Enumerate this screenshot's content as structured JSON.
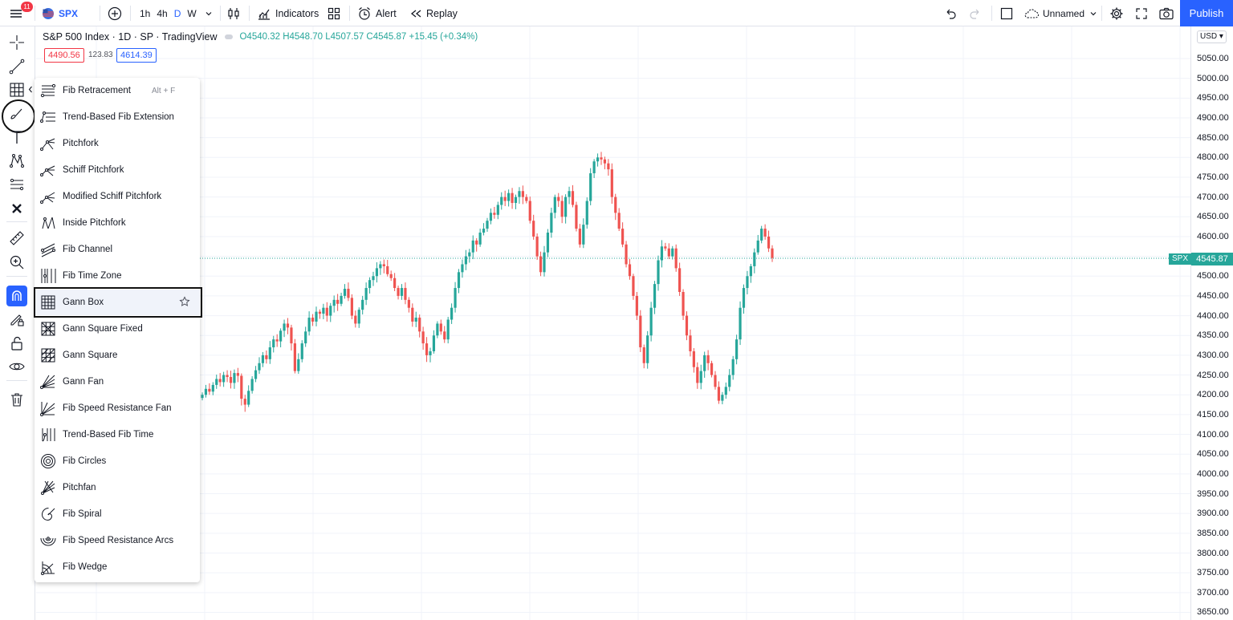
{
  "topbar": {
    "menu_badge": "11",
    "symbol": "SPX",
    "intervals": [
      "1h",
      "4h",
      "D",
      "W"
    ],
    "active_interval": "D",
    "indicators_label": "Indicators",
    "alert_label": "Alert",
    "replay_label": "Replay",
    "layout_name": "Unnamed",
    "publish_label": "Publish"
  },
  "legend": {
    "title": "S&P 500 Index · 1D · SP · TradingView",
    "ohlc": "O4540.32 H4548.70 L4507.57 C4545.87 +15.45 (+0.34%)",
    "bid": "4490.56",
    "spread": "123.83",
    "ask": "4614.39"
  },
  "price_scale": {
    "currency": "USD",
    "ticks": [
      "5050.00",
      "5000.00",
      "4950.00",
      "4900.00",
      "4850.00",
      "4800.00",
      "4750.00",
      "4700.00",
      "4650.00",
      "4600.00",
      "4550.00",
      "4500.00",
      "4450.00",
      "4400.00",
      "4350.00",
      "4300.00",
      "4250.00",
      "4200.00",
      "4150.00",
      "4100.00",
      "4050.00",
      "4000.00",
      "3950.00",
      "3900.00",
      "3850.00",
      "3800.00",
      "3750.00",
      "3700.00",
      "3650.00"
    ],
    "symbol_label": "SPX",
    "last_price": "4545.87"
  },
  "menu": {
    "items": [
      {
        "label": "Fib Retracement",
        "hotkey": "Alt + F",
        "icon": "fib-retracement-icon"
      },
      {
        "label": "Trend-Based Fib Extension",
        "icon": "trend-fib-extension-icon"
      },
      {
        "label": "Pitchfork",
        "icon": "pitchfork-icon"
      },
      {
        "label": "Schiff Pitchfork",
        "icon": "schiff-pitchfork-icon"
      },
      {
        "label": "Modified Schiff Pitchfork",
        "icon": "modified-schiff-pitchfork-icon"
      },
      {
        "label": "Inside Pitchfork",
        "icon": "inside-pitchfork-icon"
      },
      {
        "label": "Fib Channel",
        "icon": "fib-channel-icon"
      },
      {
        "label": "Fib Time Zone",
        "icon": "fib-time-zone-icon"
      },
      {
        "label": "Gann Box",
        "icon": "gann-box-icon",
        "selected": true
      },
      {
        "label": "Gann Square Fixed",
        "icon": "gann-square-fixed-icon"
      },
      {
        "label": "Gann Square",
        "icon": "gann-square-icon"
      },
      {
        "label": "Gann Fan",
        "icon": "gann-fan-icon"
      },
      {
        "label": "Fib Speed Resistance Fan",
        "icon": "fib-speed-fan-icon"
      },
      {
        "label": "Trend-Based Fib Time",
        "icon": "trend-fib-time-icon"
      },
      {
        "label": "Fib Circles",
        "icon": "fib-circles-icon"
      },
      {
        "label": "Pitchfan",
        "icon": "pitchfan-icon"
      },
      {
        "label": "Fib Spiral",
        "icon": "fib-spiral-icon"
      },
      {
        "label": "Fib Speed Resistance Arcs",
        "icon": "fib-arcs-icon"
      },
      {
        "label": "Fib Wedge",
        "icon": "fib-wedge-icon"
      }
    ]
  },
  "chart_data": {
    "type": "candlestick",
    "symbol": "SPX",
    "closes": [
      4200,
      4215,
      4208,
      4225,
      4240,
      4232,
      4250,
      4245,
      4230,
      4255,
      4248,
      4190,
      4175,
      4210,
      4240,
      4262,
      4280,
      4300,
      4290,
      4320,
      4340,
      4335,
      4362,
      4380,
      4370,
      4330,
      4260,
      4290,
      4330,
      4360,
      4395,
      4385,
      4410,
      4405,
      4420,
      4400,
      4425,
      4440,
      4430,
      4450,
      4468,
      4445,
      4400,
      4380,
      4415,
      4440,
      4470,
      4490,
      4500,
      4520,
      4530,
      4525,
      4505,
      4495,
      4470,
      4450,
      4470,
      4440,
      4420,
      4385,
      4395,
      4360,
      4330,
      4300,
      4310,
      4350,
      4380,
      4360,
      4340,
      4390,
      4420,
      4470,
      4510,
      4530,
      4550,
      4560,
      4590,
      4580,
      4610,
      4620,
      4640,
      4660,
      4655,
      4680,
      4700,
      4690,
      4710,
      4685,
      4700,
      4715,
      4700,
      4690,
      4640,
      4600,
      4550,
      4510,
      4560,
      4610,
      4660,
      4700,
      4690,
      4650,
      4700,
      4715,
      4680,
      4620,
      4580,
      4630,
      4690,
      4760,
      4790,
      4800,
      4795,
      4785,
      4770,
      4700,
      4660,
      4620,
      4580,
      4530,
      4500,
      4450,
      4400,
      4320,
      4280,
      4350,
      4420,
      4480,
      4540,
      4575,
      4570,
      4550,
      4570,
      4520,
      4460,
      4400,
      4350,
      4310,
      4270,
      4230,
      4260,
      4300,
      4280,
      4250,
      4220,
      4185,
      4200,
      4220,
      4250,
      4290,
      4340,
      4420,
      4470,
      4500,
      4525,
      4560,
      4590,
      4620,
      4600,
      4570,
      4545.87
    ]
  }
}
